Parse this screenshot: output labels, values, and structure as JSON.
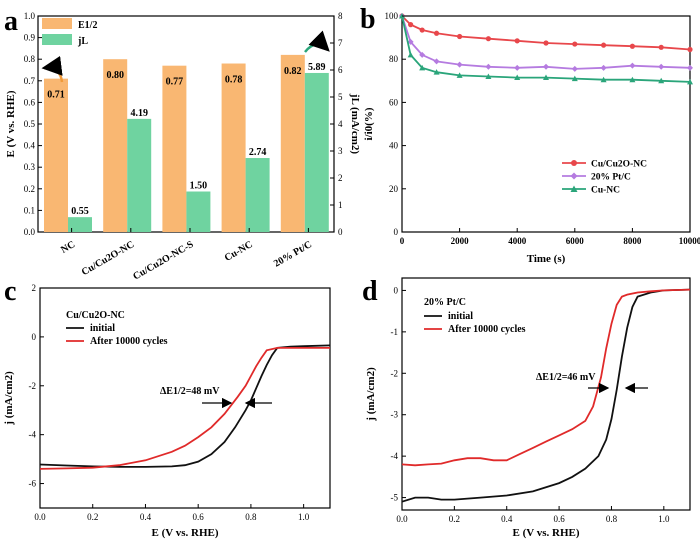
{
  "chart_data": [
    {
      "panel": "a",
      "type": "bar",
      "categories": [
        "NC",
        "Cu/Cu2O-NC",
        "Cu/Cu2O-NC-S",
        "Cu-NC",
        "20% Pt/C"
      ],
      "series": [
        {
          "name": "E1/2",
          "values": [
            0.71,
            0.8,
            0.77,
            0.78,
            0.82
          ],
          "labels": [
            "0.71",
            "0.80",
            "0.77",
            "0.78",
            "0.82"
          ],
          "color": "#f9b772",
          "axis": "left"
        },
        {
          "name": "jL",
          "values": [
            0.55,
            4.19,
            1.5,
            2.74,
            5.89
          ],
          "labels": [
            "0.55",
            "4.19",
            "1.50",
            "2.74",
            "5.89"
          ],
          "color": "#6fd3a0",
          "axis": "right"
        }
      ],
      "ylabel": "E (V vs. RHE)",
      "y2label": "jL (mA/cm2)",
      "ylim": [
        0,
        1.0
      ],
      "y2lim": [
        0,
        8
      ],
      "yticks": [
        "0.0",
        "0.1",
        "0.2",
        "0.3",
        "0.4",
        "0.5",
        "0.6",
        "0.7",
        "0.8",
        "0.9",
        "1.0"
      ],
      "y2ticks": [
        "0",
        "1",
        "2",
        "3",
        "4",
        "5",
        "6",
        "7",
        "8"
      ],
      "legend_position": "top-left"
    },
    {
      "panel": "b",
      "type": "line",
      "xlabel": "Time (s)",
      "ylabel": "i/i0(%)",
      "xlim": [
        0,
        10000
      ],
      "ylim": [
        0,
        100
      ],
      "xticks": [
        "0",
        "2000",
        "4000",
        "6000",
        "8000",
        "10000"
      ],
      "yticks": [
        "0",
        "20",
        "40",
        "60",
        "80",
        "100"
      ],
      "legend_position": "lower-right",
      "series": [
        {
          "name": "Cu/Cu2O-NC",
          "color": "#e8474b",
          "marker": "circle",
          "x": [
            0,
            300,
            700,
            1200,
            2000,
            3000,
            4000,
            5000,
            6000,
            7000,
            8000,
            9000,
            10000
          ],
          "y": [
            100,
            96,
            93.5,
            92,
            90.5,
            89.5,
            88.5,
            87.5,
            87,
            86.5,
            86,
            85.5,
            84.5
          ]
        },
        {
          "name": "20% Pt/C",
          "color": "#b57be0",
          "marker": "diamond",
          "x": [
            0,
            300,
            700,
            1200,
            2000,
            3000,
            4000,
            5000,
            6000,
            7000,
            8000,
            9000,
            10000
          ],
          "y": [
            100,
            88,
            82,
            79,
            77.5,
            76.5,
            76,
            76.5,
            75.5,
            76,
            77,
            76.5,
            76
          ]
        },
        {
          "name": "Cu-NC",
          "color": "#2aa57a",
          "marker": "triangle",
          "x": [
            0,
            300,
            700,
            1200,
            2000,
            3000,
            4000,
            5000,
            6000,
            7000,
            8000,
            9000,
            10000
          ],
          "y": [
            100,
            82,
            76,
            74,
            72.5,
            72,
            71.5,
            71.5,
            71,
            70.5,
            70.5,
            70,
            69.5
          ]
        }
      ]
    },
    {
      "panel": "c",
      "type": "line",
      "title": "Cu/Cu2O-NC",
      "xlabel": "E (V vs. RHE)",
      "ylabel": "j (mA/cm2)",
      "xlim": [
        0.0,
        1.1
      ],
      "ylim": [
        -7,
        2
      ],
      "xticks": [
        "0.0",
        "0.2",
        "0.4",
        "0.6",
        "0.8",
        "1.0"
      ],
      "yticks": [
        "2",
        "0",
        "-2",
        "-4",
        "-6"
      ],
      "annotation": "ΔE1/2=48 mV",
      "series": [
        {
          "name": "initial",
          "color": "#111111",
          "x": [
            0.0,
            0.1,
            0.2,
            0.3,
            0.4,
            0.5,
            0.55,
            0.6,
            0.65,
            0.7,
            0.74,
            0.78,
            0.8,
            0.82,
            0.84,
            0.86,
            0.88,
            0.9,
            0.95,
            1.0,
            1.1
          ],
          "y": [
            -5.22,
            -5.26,
            -5.3,
            -5.32,
            -5.32,
            -5.3,
            -5.25,
            -5.1,
            -4.8,
            -4.3,
            -3.7,
            -3.0,
            -2.6,
            -2.1,
            -1.6,
            -1.15,
            -0.75,
            -0.45,
            -0.4,
            -0.38,
            -0.35
          ]
        },
        {
          "name": "After 10000 cycles",
          "color": "#e02a2a",
          "x": [
            0.0,
            0.1,
            0.2,
            0.3,
            0.4,
            0.5,
            0.55,
            0.6,
            0.65,
            0.7,
            0.75,
            0.78,
            0.8,
            0.82,
            0.84,
            0.86,
            0.9,
            0.95,
            1.0,
            1.1
          ],
          "y": [
            -5.4,
            -5.38,
            -5.35,
            -5.25,
            -5.05,
            -4.7,
            -4.45,
            -4.1,
            -3.7,
            -3.15,
            -2.45,
            -2.0,
            -1.6,
            -1.2,
            -0.85,
            -0.55,
            -0.45,
            -0.45,
            -0.45,
            -0.45
          ]
        }
      ]
    },
    {
      "panel": "d",
      "type": "line",
      "title": "20% Pt/C",
      "xlabel": "E (V vs. RHE)",
      "ylabel": "j (mA/cm2)",
      "xlim": [
        0.0,
        1.1
      ],
      "ylim": [
        -5.3,
        0.3
      ],
      "xticks": [
        "0.0",
        "0.2",
        "0.4",
        "0.6",
        "0.8",
        "1.0"
      ],
      "yticks": [
        "0",
        "-1",
        "-2",
        "-3",
        "-4",
        "-5"
      ],
      "annotation": "ΔE1/2=46 mV",
      "series": [
        {
          "name": "initial",
          "color": "#111111",
          "x": [
            0.0,
            0.05,
            0.1,
            0.15,
            0.2,
            0.3,
            0.4,
            0.5,
            0.6,
            0.65,
            0.7,
            0.75,
            0.78,
            0.8,
            0.82,
            0.84,
            0.86,
            0.88,
            0.9,
            0.95,
            1.0,
            1.1
          ],
          "y": [
            -5.1,
            -5.0,
            -5.0,
            -5.05,
            -5.05,
            -5.0,
            -4.95,
            -4.85,
            -4.65,
            -4.5,
            -4.3,
            -4.0,
            -3.6,
            -3.1,
            -2.4,
            -1.6,
            -0.9,
            -0.4,
            -0.15,
            -0.05,
            0.0,
            0.02
          ]
        },
        {
          "name": "After 10000 cycles",
          "color": "#e02a2a",
          "x": [
            0.0,
            0.05,
            0.1,
            0.15,
            0.2,
            0.25,
            0.3,
            0.35,
            0.4,
            0.45,
            0.5,
            0.55,
            0.6,
            0.65,
            0.7,
            0.73,
            0.76,
            0.78,
            0.8,
            0.82,
            0.84,
            0.86,
            0.9,
            0.95,
            1.0,
            1.1
          ],
          "y": [
            -4.2,
            -4.22,
            -4.2,
            -4.18,
            -4.1,
            -4.05,
            -4.05,
            -4.1,
            -4.1,
            -3.95,
            -3.8,
            -3.65,
            -3.5,
            -3.35,
            -3.15,
            -2.8,
            -2.1,
            -1.4,
            -0.8,
            -0.35,
            -0.15,
            -0.1,
            -0.05,
            -0.02,
            0.0,
            0.02
          ]
        }
      ]
    }
  ]
}
